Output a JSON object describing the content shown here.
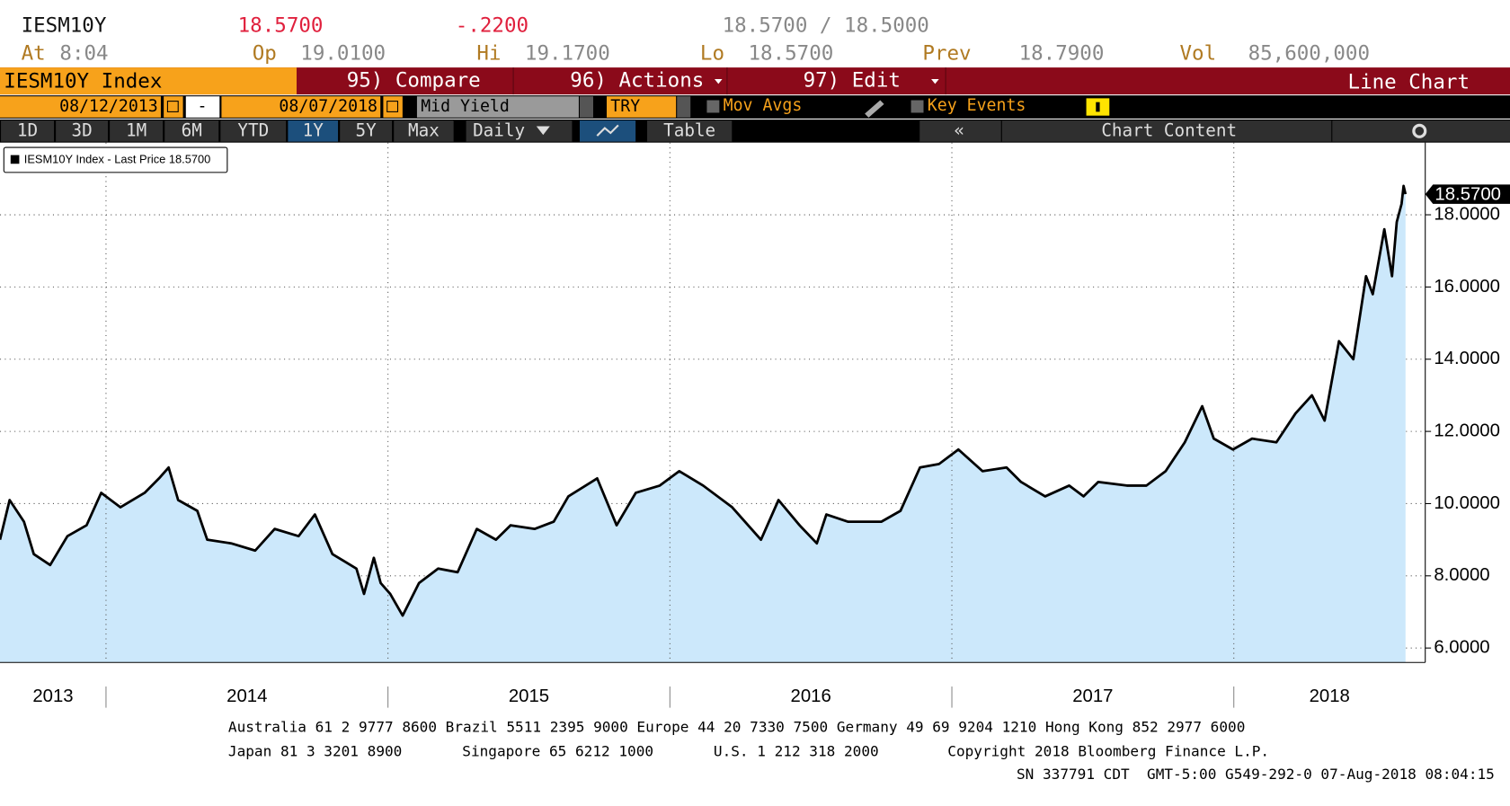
{
  "header": {
    "ticker": "IESM10Y",
    "last": "18.5700",
    "change": "-.2200",
    "bid_ask": "18.5700 / 18.5000",
    "fields": [
      {
        "label": "At",
        "value": "8:04"
      },
      {
        "label": "Op",
        "value": "19.0100"
      },
      {
        "label": "Hi",
        "value": "19.1700"
      },
      {
        "label": "Lo",
        "value": "18.5700"
      },
      {
        "label": "Prev",
        "value": "18.7900"
      },
      {
        "label": "Vol",
        "value": "85,600,000"
      }
    ]
  },
  "toolbar": {
    "security": "IESM10Y Index",
    "compare": "95) Compare",
    "actions": "96) Actions",
    "edit": "97) Edit",
    "view": "Line Chart",
    "start_date": "08/12/2013",
    "date_sep": "-",
    "end_date": "08/07/2018",
    "field": "Mid Yield",
    "currency": "TRY",
    "mov_avgs": "Mov Avgs",
    "key_events": "Key Events",
    "periods": [
      "1D",
      "3D",
      "1M",
      "6M",
      "YTD",
      "1Y",
      "5Y",
      "Max"
    ],
    "active_period": "1Y",
    "frequency": "Daily",
    "table": "Table",
    "collapse": "«",
    "chart_content": "Chart Content"
  },
  "chart_data": {
    "type": "line",
    "legend": "IESM10Y Index - Last Price 18.5700",
    "x": [
      2013.624,
      2013.658,
      2013.709,
      2013.744,
      2013.802,
      2013.863,
      2013.931,
      2013.983,
      2014.051,
      2014.137,
      2014.188,
      2014.222,
      2014.256,
      2014.324,
      2014.359,
      2014.444,
      2014.529,
      2014.598,
      2014.683,
      2014.741,
      2014.803,
      2014.888,
      2014.915,
      2014.95,
      2014.974,
      2015.008,
      2015.052,
      2015.11,
      2015.178,
      2015.247,
      2015.315,
      2015.383,
      2015.435,
      2015.52,
      2015.588,
      2015.64,
      2015.742,
      2015.811,
      2015.879,
      2015.964,
      2016.033,
      2016.118,
      2016.221,
      2016.323,
      2016.385,
      2016.46,
      2016.521,
      2016.555,
      2016.631,
      2016.75,
      2016.818,
      2016.887,
      2016.955,
      2017.023,
      2017.109,
      2017.194,
      2017.245,
      2017.331,
      2017.416,
      2017.467,
      2017.519,
      2017.621,
      2017.69,
      2017.758,
      2017.826,
      2017.888,
      2017.929,
      2017.997,
      2018.065,
      2018.151,
      2018.219,
      2018.277,
      2018.322,
      2018.373,
      2018.424,
      2018.469,
      2018.493,
      2018.534,
      2018.561,
      2018.578,
      2018.595,
      2018.602,
      2018.609
    ],
    "series": [
      {
        "name": "IESM10Y Index",
        "color": "#000000",
        "fill": "#cce8fb",
        "values": [
          9.0,
          10.1,
          9.5,
          8.6,
          8.3,
          9.1,
          9.4,
          10.3,
          9.9,
          10.3,
          10.7,
          11.0,
          10.1,
          9.8,
          9.0,
          8.9,
          8.7,
          9.3,
          9.1,
          9.7,
          8.6,
          8.2,
          7.5,
          8.5,
          7.8,
          7.5,
          6.9,
          7.8,
          8.2,
          8.1,
          9.3,
          9.0,
          9.4,
          9.3,
          9.5,
          10.2,
          10.7,
          9.4,
          10.3,
          10.5,
          10.9,
          10.5,
          9.9,
          9.0,
          10.1,
          9.4,
          8.9,
          9.7,
          9.5,
          9.5,
          9.8,
          11.0,
          11.1,
          11.5,
          10.9,
          11.0,
          10.6,
          10.2,
          10.5,
          10.2,
          10.6,
          10.5,
          10.5,
          10.9,
          11.7,
          12.7,
          11.8,
          11.5,
          11.8,
          11.7,
          12.5,
          13.0,
          12.3,
          14.5,
          14.0,
          16.3,
          15.8,
          17.6,
          16.3,
          17.8,
          18.3,
          18.8,
          18.57
        ]
      }
    ],
    "last_price": {
      "value": 18.57,
      "label": "18.5700"
    },
    "xlim": [
      2013.624,
      2018.679
    ],
    "xticks": [
      {
        "value": 2013,
        "label": "2013"
      },
      {
        "value": 2014,
        "label": "2014"
      },
      {
        "value": 2015,
        "label": "2015"
      },
      {
        "value": 2016,
        "label": "2016"
      },
      {
        "value": 2017,
        "label": "2017"
      },
      {
        "value": 2018,
        "label": "2018"
      }
    ],
    "ylim": [
      5.6,
      20
    ],
    "yticks": [
      {
        "value": 6,
        "label": "6.0000"
      },
      {
        "value": 8,
        "label": "8.0000"
      },
      {
        "value": 10,
        "label": "10.0000"
      },
      {
        "value": 12,
        "label": "12.0000"
      },
      {
        "value": 14,
        "label": "14.0000"
      },
      {
        "value": 16,
        "label": "16.0000"
      },
      {
        "value": 18,
        "label": "18.0000"
      }
    ],
    "grid": true
  },
  "footer": {
    "line1": "Australia 61 2 9777 8600 Brazil 5511 2395 9000 Europe 44 20 7330 7500 Germany 49 69 9204 1210 Hong Kong 852 2977 6000",
    "japan": "Japan 81 3 3201 8900",
    "singapore": "Singapore 65 6212 1000",
    "us": "U.S. 1 212 318 2000",
    "copyright": "Copyright 2018 Bloomberg Finance L.P.",
    "stamp": "SN 337791 CDT  GMT-5:00 G549-292-0 07-Aug-2018 08:04:15"
  }
}
